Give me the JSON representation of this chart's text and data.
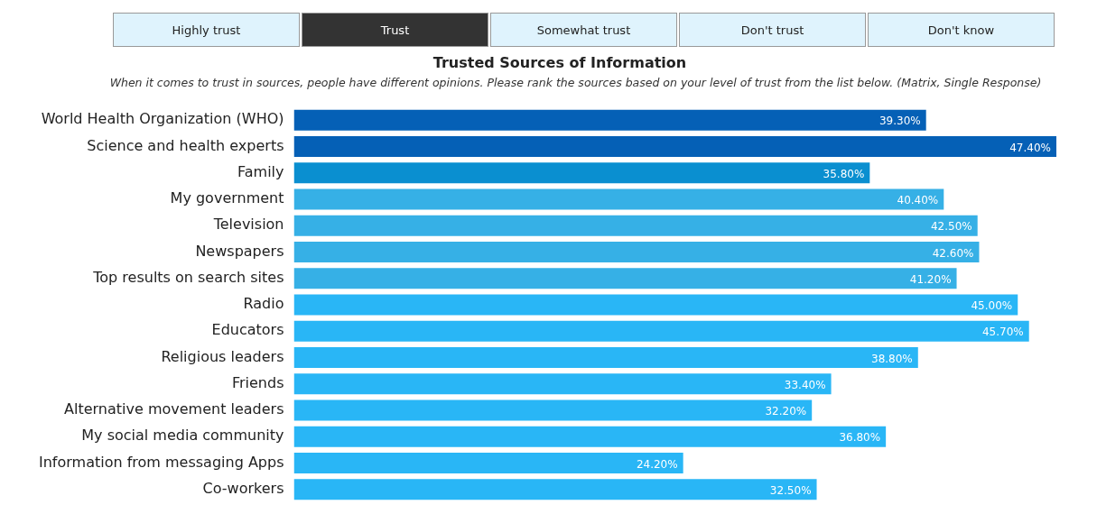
{
  "chart_data": {
    "type": "bar",
    "orientation": "horizontal",
    "title": "Trusted Sources of Information",
    "subtitle": "When it comes to trust in sources, people have different opinions. Please rank the sources based on your level of trust from the list below. (Matrix, Single Response)",
    "annotations": [
      "Highly trust",
      "Trust",
      "Somewhat trust",
      "Don't trust",
      "Don't know"
    ],
    "categories": [
      "World Health Organization (WHO)",
      "Science and health experts",
      "Family",
      "My government",
      "Television",
      "Newspapers",
      "Top results on search sites",
      "Radio",
      "Educators",
      "Religious leaders",
      "Friends",
      "Alternative movement leaders",
      "My social media community",
      "Information from messaging Apps",
      "Co-workers"
    ],
    "values": [
      39.3,
      47.4,
      35.8,
      40.4,
      42.5,
      42.6,
      41.2,
      45.0,
      45.7,
      38.8,
      33.4,
      32.2,
      36.8,
      24.2,
      32.5
    ],
    "value_labels": [
      "39.30%",
      "47.40%",
      "35.80%",
      "40.40%",
      "42.50%",
      "42.60%",
      "41.20%",
      "45.00%",
      "45.70%",
      "38.80%",
      "33.40%",
      "32.20%",
      "36.80%",
      "24.20%",
      "32.50%"
    ],
    "colors": [
      "#0560b6",
      "#0560b6",
      "#0a8fd0",
      "#36b0e6",
      "#36b0e6",
      "#36b0e6",
      "#36b0e6",
      "#29b6f6",
      "#29b6f6",
      "#29b6f6",
      "#29b6f6",
      "#29b6f6",
      "#29b6f6",
      "#29b6f6",
      "#29b6f6"
    ],
    "grid": false,
    "legend": false
  }
}
